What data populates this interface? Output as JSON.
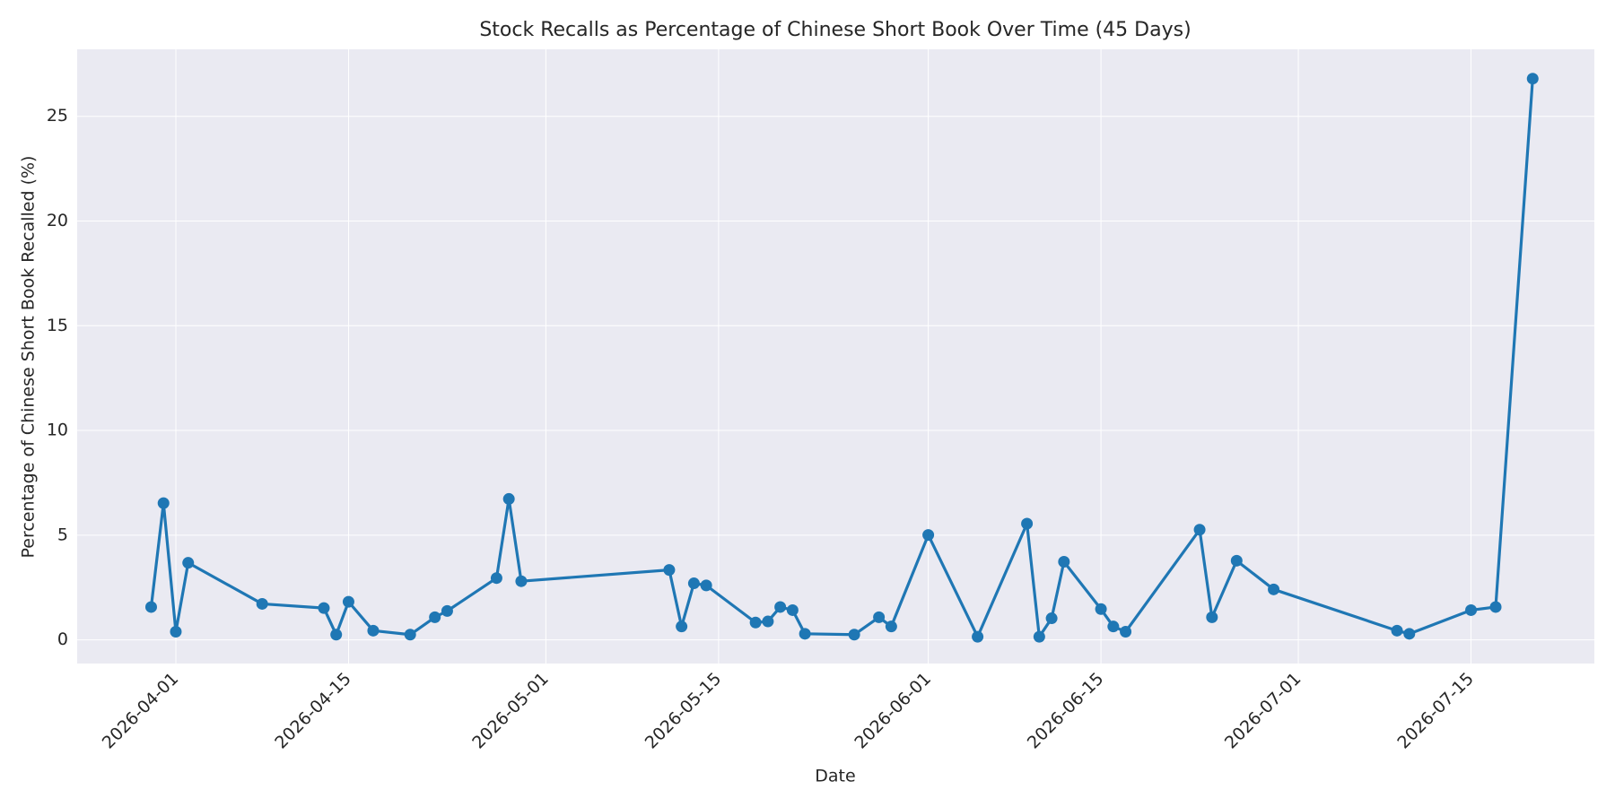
{
  "chart_data": {
    "type": "line",
    "title": "Stock Recalls as Percentage of Chinese Short Book Over Time (45 Days)",
    "x_label": "Date",
    "y_label": "Percentage of Chinese Short Book Recalled (%)",
    "x": [
      "2026-03-30",
      "2026-03-31",
      "2026-04-01",
      "2026-04-02",
      "2026-04-08",
      "2026-04-13",
      "2026-04-14",
      "2026-04-15",
      "2026-04-17",
      "2026-04-20",
      "2026-04-22",
      "2026-04-23",
      "2026-04-27",
      "2026-04-28",
      "2026-04-29",
      "2026-05-11",
      "2026-05-12",
      "2026-05-13",
      "2026-05-14",
      "2026-05-18",
      "2026-05-19",
      "2026-05-20",
      "2026-05-21",
      "2026-05-22",
      "2026-05-26",
      "2026-05-28",
      "2026-05-29",
      "2026-06-01",
      "2026-06-05",
      "2026-06-09",
      "2026-06-10",
      "2026-06-11",
      "2026-06-12",
      "2026-06-15",
      "2026-06-16",
      "2026-06-17",
      "2026-06-23",
      "2026-06-24",
      "2026-06-26",
      "2026-06-29",
      "2026-07-09",
      "2026-07-10",
      "2026-07-15",
      "2026-07-17",
      "2026-07-20"
    ],
    "series": [
      {
        "color": "#1f77b4",
        "values": [
          1.57,
          6.53,
          0.39,
          3.68,
          1.72,
          1.52,
          0.25,
          1.82,
          0.44,
          0.25,
          1.08,
          1.38,
          2.95,
          6.73,
          2.8,
          3.34,
          0.64,
          2.7,
          2.6,
          0.83,
          0.88,
          1.57,
          1.42,
          0.29,
          0.25,
          1.08,
          0.64,
          5.01,
          0.15,
          5.55,
          0.15,
          1.03,
          3.73,
          1.47,
          0.64,
          0.39,
          5.26,
          1.08,
          3.78,
          2.41,
          0.44,
          0.29,
          1.42,
          1.57,
          26.8
        ]
      }
    ],
    "xlim": [
      "2026-03-24",
      "2026-07-25"
    ],
    "ylim": [
      -1.13,
      28.2
    ],
    "xticks": [
      "2026-04-01",
      "2026-04-15",
      "2026-05-01",
      "2026-05-15",
      "2026-06-01",
      "2026-06-15",
      "2026-07-01",
      "2026-07-15"
    ],
    "yticks": [
      0,
      5,
      10,
      15,
      20,
      25
    ],
    "grid": true
  }
}
